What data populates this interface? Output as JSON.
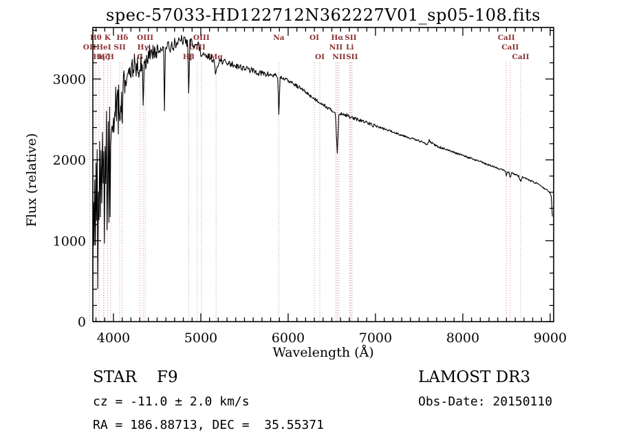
{
  "footer": {
    "class_line": "STAR    F9",
    "survey": "LAMOST DR3",
    "cz_line": "cz = -11.0 ± 2.0 km/s",
    "obs_date": "Obs-Date: 20150110",
    "radec_line": "RA = 186.88713, DEC =  35.55371"
  },
  "colors": {
    "spectrum": "#000000",
    "axis": "#000000",
    "line_marker": "#c47d7d",
    "line_label": "#8b2f2f",
    "background": "#ffffff"
  },
  "chart_data": {
    "type": "line",
    "title": "spec-57033-HD122712N362227V01_sp05-108.fits",
    "xlabel": "Wavelength (Å)",
    "ylabel": "Flux (relative)",
    "x_range": [
      3764,
      9040
    ],
    "y_range_full": [
      0,
      3637
    ],
    "x_ticks": [
      4000,
      5000,
      6000,
      7000,
      8000,
      9000
    ],
    "x_minor_step": 100,
    "y_ticks": [
      0,
      1000,
      2000,
      3000
    ],
    "y_minor_step": 200,
    "legend": "none",
    "grid": "off",
    "spectral_lines": [
      {
        "wl": 3727,
        "label": "OII",
        "row": 2
      },
      {
        "wl": 3798,
        "label": "Hθ",
        "row": 1
      },
      {
        "wl": 3835,
        "label": "Hη",
        "row": 3
      },
      {
        "wl": 3889,
        "label": "HeI",
        "row": 2
      },
      {
        "wl": 3889,
        "label": "Hζ",
        "row": 3
      },
      {
        "wl": 3933,
        "label": "K",
        "row": 1
      },
      {
        "wl": 3968,
        "label": "H",
        "row": 3
      },
      {
        "wl": 4072,
        "label": "SII",
        "row": 2
      },
      {
        "wl": 4101,
        "label": "Hδ",
        "row": 1
      },
      {
        "wl": 4305,
        "label": "G",
        "row": 3
      },
      {
        "wl": 4340,
        "label": "Hγ",
        "row": 2
      },
      {
        "wl": 4363,
        "label": "OIII",
        "row": 1
      },
      {
        "wl": 4861,
        "label": "Hβ",
        "row": 3
      },
      {
        "wl": 4959,
        "label": "OIII",
        "row": 2
      },
      {
        "wl": 5007,
        "label": "OIII",
        "row": 1
      },
      {
        "wl": 5175,
        "label": "Mg",
        "row": 3
      },
      {
        "wl": 5893,
        "label": "Na",
        "row": 1
      },
      {
        "wl": 6300,
        "label": "OI",
        "row": 1
      },
      {
        "wl": 6363,
        "label": "OI",
        "row": 3
      },
      {
        "wl": 6548,
        "label": "NII",
        "row": 2
      },
      {
        "wl": 6563,
        "label": "Hα",
        "row": 1
      },
      {
        "wl": 6583,
        "label": "NII",
        "row": 3
      },
      {
        "wl": 6707,
        "label": "Li",
        "row": 2
      },
      {
        "wl": 6716,
        "label": "SII",
        "row": 1
      },
      {
        "wl": 6731,
        "label": "SII",
        "row": 3
      },
      {
        "wl": 8498,
        "label": "CaII",
        "row": 1
      },
      {
        "wl": 8542,
        "label": "CaII",
        "row": 2
      },
      {
        "wl": 8662,
        "label": "CaII",
        "row": 3
      }
    ],
    "series": [
      {
        "name": "flux",
        "anchors": [
          [
            3764,
            600
          ],
          [
            3772,
            1500
          ],
          [
            3778,
            820
          ],
          [
            3785,
            1950
          ],
          [
            3792,
            1200
          ],
          [
            3800,
            2050
          ],
          [
            3806,
            1000
          ],
          [
            3814,
            2100
          ],
          [
            3820,
            620
          ],
          [
            3828,
            1700
          ],
          [
            3835,
            1150
          ],
          [
            3842,
            2150
          ],
          [
            3850,
            1400
          ],
          [
            3858,
            2250
          ],
          [
            3866,
            1200
          ],
          [
            3874,
            2300
          ],
          [
            3882,
            1600
          ],
          [
            3889,
            2100
          ],
          [
            3896,
            1100
          ],
          [
            3904,
            2350
          ],
          [
            3912,
            1700
          ],
          [
            3920,
            2400
          ],
          [
            3926,
            1350
          ],
          [
            3933,
            1800
          ],
          [
            3940,
            2450
          ],
          [
            3948,
            1500
          ],
          [
            3955,
            2500
          ],
          [
            3962,
            1250
          ],
          [
            3968,
            1900
          ],
          [
            3976,
            2550
          ],
          [
            3984,
            2150
          ],
          [
            3992,
            2600
          ],
          [
            4000,
            2300
          ],
          [
            4010,
            2650
          ],
          [
            4020,
            2400
          ],
          [
            4026,
            2700
          ],
          [
            4035,
            2500
          ],
          [
            4045,
            2750
          ],
          [
            4055,
            2570
          ],
          [
            4064,
            2800
          ],
          [
            4072,
            2620
          ],
          [
            4082,
            2850
          ],
          [
            4092,
            2760
          ],
          [
            4101,
            2420
          ],
          [
            4110,
            2900
          ],
          [
            4120,
            3000
          ],
          [
            4135,
            2900
          ],
          [
            4150,
            3050
          ],
          [
            4165,
            3000
          ],
          [
            4180,
            3100
          ],
          [
            4200,
            3000
          ],
          [
            4215,
            3150
          ],
          [
            4226,
            3000
          ],
          [
            4240,
            3200
          ],
          [
            4255,
            3100
          ],
          [
            4270,
            3200
          ],
          [
            4285,
            3150
          ],
          [
            4300,
            3050
          ],
          [
            4315,
            3200
          ],
          [
            4330,
            3220
          ],
          [
            4340,
            2650
          ],
          [
            4352,
            3250
          ],
          [
            4363,
            3150
          ],
          [
            4380,
            3300
          ],
          [
            4400,
            3250
          ],
          [
            4420,
            3350
          ],
          [
            4440,
            3300
          ],
          [
            4460,
            3350
          ],
          [
            4481,
            3250
          ],
          [
            4500,
            3380
          ],
          [
            4520,
            3340
          ],
          [
            4540,
            3400
          ],
          [
            4560,
            3360
          ],
          [
            4575,
            3390
          ],
          [
            4584,
            2560
          ],
          [
            4595,
            3390
          ],
          [
            4620,
            3420
          ],
          [
            4650,
            3380
          ],
          [
            4668,
            3440
          ],
          [
            4686,
            3400
          ],
          [
            4700,
            3460
          ],
          [
            4720,
            3420
          ],
          [
            4740,
            3480
          ],
          [
            4760,
            3440
          ],
          [
            4780,
            3490
          ],
          [
            4800,
            3460
          ],
          [
            4820,
            3490
          ],
          [
            4840,
            3440
          ],
          [
            4850,
            3460
          ],
          [
            4861,
            2800
          ],
          [
            4875,
            3440
          ],
          [
            4890,
            3470
          ],
          [
            4910,
            3430
          ],
          [
            4930,
            3450
          ],
          [
            4950,
            3410
          ],
          [
            4970,
            3430
          ],
          [
            5000,
            3300
          ],
          [
            5030,
            3290
          ],
          [
            5060,
            3270
          ],
          [
            5090,
            3280
          ],
          [
            5120,
            3260
          ],
          [
            5150,
            3230
          ],
          [
            5167,
            3060
          ],
          [
            5184,
            3150
          ],
          [
            5210,
            3230
          ],
          [
            5240,
            3220
          ],
          [
            5270,
            3210
          ],
          [
            5300,
            3200
          ],
          [
            5330,
            3190
          ],
          [
            5360,
            3180
          ],
          [
            5390,
            3170
          ],
          [
            5420,
            3160
          ],
          [
            5450,
            3150
          ],
          [
            5480,
            3140
          ],
          [
            5510,
            3130
          ],
          [
            5540,
            3120
          ],
          [
            5570,
            3110
          ],
          [
            5600,
            3100
          ],
          [
            5630,
            3090
          ],
          [
            5660,
            3080
          ],
          [
            5690,
            3070
          ],
          [
            5720,
            3065
          ],
          [
            5750,
            3060
          ],
          [
            5780,
            3055
          ],
          [
            5810,
            3050
          ],
          [
            5840,
            3045
          ],
          [
            5880,
            3040
          ],
          [
            5893,
            2560
          ],
          [
            5908,
            3020
          ],
          [
            5940,
            3010
          ],
          [
            5970,
            2995
          ],
          [
            6000,
            2980
          ],
          [
            6030,
            2960
          ],
          [
            6060,
            2940
          ],
          [
            6090,
            2920
          ],
          [
            6120,
            2900
          ],
          [
            6150,
            2880
          ],
          [
            6180,
            2855
          ],
          [
            6210,
            2830
          ],
          [
            6240,
            2805
          ],
          [
            6270,
            2780
          ],
          [
            6300,
            2755
          ],
          [
            6330,
            2735
          ],
          [
            6360,
            2715
          ],
          [
            6390,
            2695
          ],
          [
            6420,
            2670
          ],
          [
            6450,
            2645
          ],
          [
            6480,
            2620
          ],
          [
            6510,
            2605
          ],
          [
            6540,
            2590
          ],
          [
            6563,
            2070
          ],
          [
            6580,
            2560
          ],
          [
            6610,
            2575
          ],
          [
            6640,
            2565
          ],
          [
            6670,
            2550
          ],
          [
            6700,
            2535
          ],
          [
            6730,
            2520
          ],
          [
            6760,
            2510
          ],
          [
            6790,
            2500
          ],
          [
            6820,
            2490
          ],
          [
            6850,
            2480
          ],
          [
            6880,
            2465
          ],
          [
            6910,
            2455
          ],
          [
            6940,
            2445
          ],
          [
            6970,
            2430
          ],
          [
            7000,
            2420
          ],
          [
            7040,
            2405
          ],
          [
            7080,
            2390
          ],
          [
            7120,
            2375
          ],
          [
            7160,
            2360
          ],
          [
            7200,
            2345
          ],
          [
            7240,
            2330
          ],
          [
            7280,
            2315
          ],
          [
            7320,
            2300
          ],
          [
            7360,
            2285
          ],
          [
            7400,
            2270
          ],
          [
            7440,
            2255
          ],
          [
            7480,
            2240
          ],
          [
            7520,
            2225
          ],
          [
            7560,
            2210
          ],
          [
            7595,
            2195
          ],
          [
            7615,
            2245
          ],
          [
            7645,
            2210
          ],
          [
            7675,
            2185
          ],
          [
            7700,
            2170
          ],
          [
            7740,
            2155
          ],
          [
            7780,
            2140
          ],
          [
            7820,
            2120
          ],
          [
            7860,
            2105
          ],
          [
            7900,
            2090
          ],
          [
            7940,
            2075
          ],
          [
            7980,
            2060
          ],
          [
            8020,
            2045
          ],
          [
            8060,
            2030
          ],
          [
            8100,
            2015
          ],
          [
            8140,
            2000
          ],
          [
            8180,
            1985
          ],
          [
            8220,
            1970
          ],
          [
            8260,
            1950
          ],
          [
            8300,
            1935
          ],
          [
            8340,
            1920
          ],
          [
            8380,
            1905
          ],
          [
            8420,
            1890
          ],
          [
            8460,
            1875
          ],
          [
            8490,
            1865
          ],
          [
            8498,
            1790
          ],
          [
            8512,
            1855
          ],
          [
            8530,
            1845
          ],
          [
            8542,
            1780
          ],
          [
            8558,
            1840
          ],
          [
            8580,
            1830
          ],
          [
            8610,
            1815
          ],
          [
            8640,
            1800
          ],
          [
            8662,
            1730
          ],
          [
            8680,
            1790
          ],
          [
            8710,
            1775
          ],
          [
            8740,
            1760
          ],
          [
            8770,
            1745
          ],
          [
            8800,
            1730
          ],
          [
            8830,
            1715
          ],
          [
            8860,
            1700
          ],
          [
            8890,
            1680
          ],
          [
            8920,
            1660
          ],
          [
            8950,
            1635
          ],
          [
            8980,
            1610
          ],
          [
            9000,
            1590
          ],
          [
            9012,
            1555
          ],
          [
            9025,
            1300
          ]
        ]
      }
    ],
    "noise": {
      "seed": 13,
      "step": 6,
      "regions": [
        [
          3764,
          4110,
          280
        ],
        [
          4110,
          4500,
          110
        ],
        [
          4500,
          5000,
          55
        ],
        [
          5000,
          5900,
          38
        ],
        [
          5900,
          7000,
          22
        ],
        [
          7000,
          8200,
          14
        ],
        [
          8200,
          9040,
          11
        ]
      ]
    }
  }
}
